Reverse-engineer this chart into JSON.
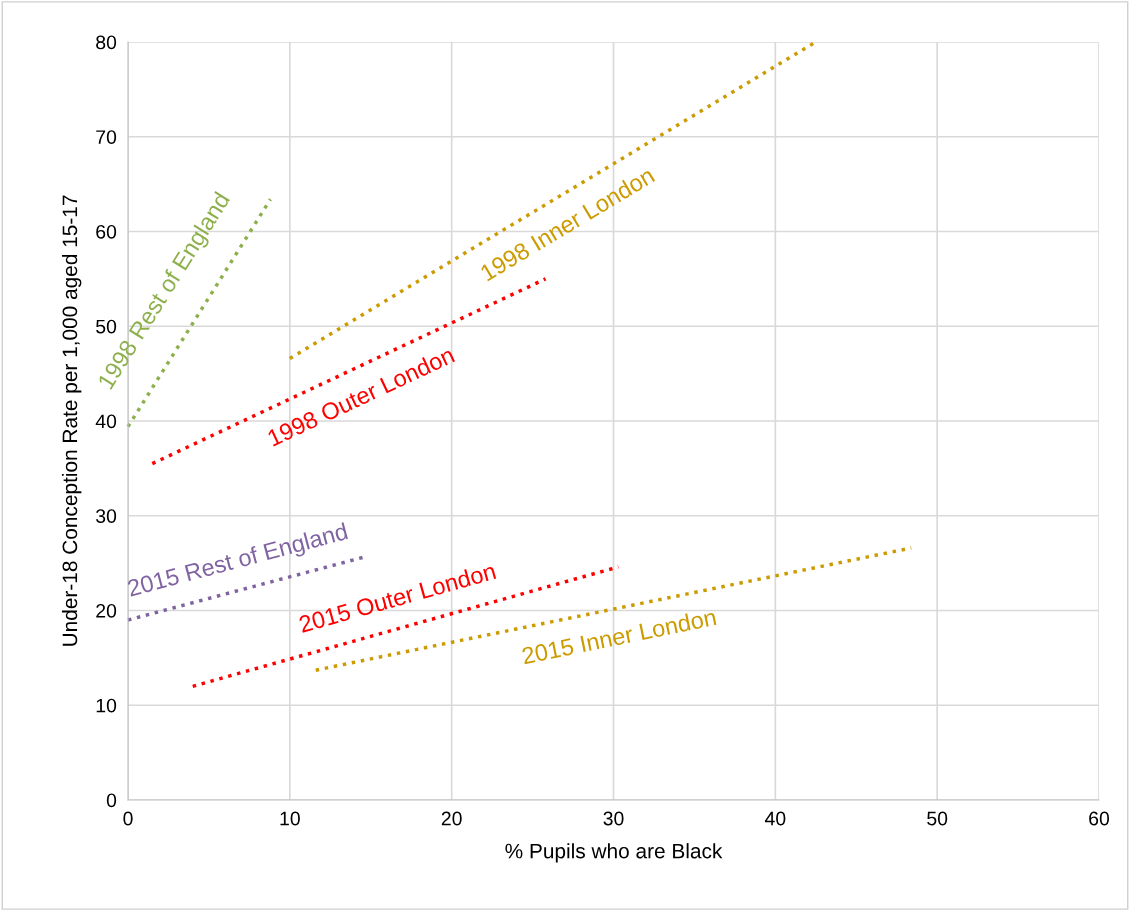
{
  "chart_data": {
    "type": "line",
    "xlabel": "% Pupils who are Black",
    "ylabel": "Under-18 Conception Rate per 1,000 aged 15-17",
    "xlim": [
      0,
      60
    ],
    "xticks": [
      0,
      10,
      20,
      30,
      40,
      50,
      60
    ],
    "ylim": [
      0,
      80
    ],
    "yticks": [
      0,
      10,
      20,
      30,
      40,
      50,
      60,
      70,
      80
    ],
    "grid": true,
    "legend": false,
    "marker": "none",
    "line_style": "dotted",
    "series": [
      {
        "name": "1998 Rest of England",
        "color": "#8db04c",
        "x": [
          0,
          8.8
        ],
        "values": [
          39.4,
          63.4
        ]
      },
      {
        "name": "1998 Inner London",
        "color": "#cc9b00",
        "x": [
          10.0,
          42.5
        ],
        "values": [
          46.6,
          80
        ]
      },
      {
        "name": "1998 Outer London",
        "color": "#ff0000",
        "x": [
          1.5,
          25.8
        ],
        "values": [
          35.5,
          55.0
        ]
      },
      {
        "name": "2015 Rest of England",
        "color": "#8064a2",
        "x": [
          0,
          14.5
        ],
        "values": [
          19.0,
          25.6
        ]
      },
      {
        "name": "2015 Outer London",
        "color": "#ff0000",
        "x": [
          4.0,
          30.3
        ],
        "values": [
          12.0,
          24.6
        ]
      },
      {
        "name": "2015 Inner London",
        "color": "#cc9b00",
        "x": [
          11.6,
          48.4
        ],
        "values": [
          13.7,
          26.6
        ]
      }
    ]
  }
}
